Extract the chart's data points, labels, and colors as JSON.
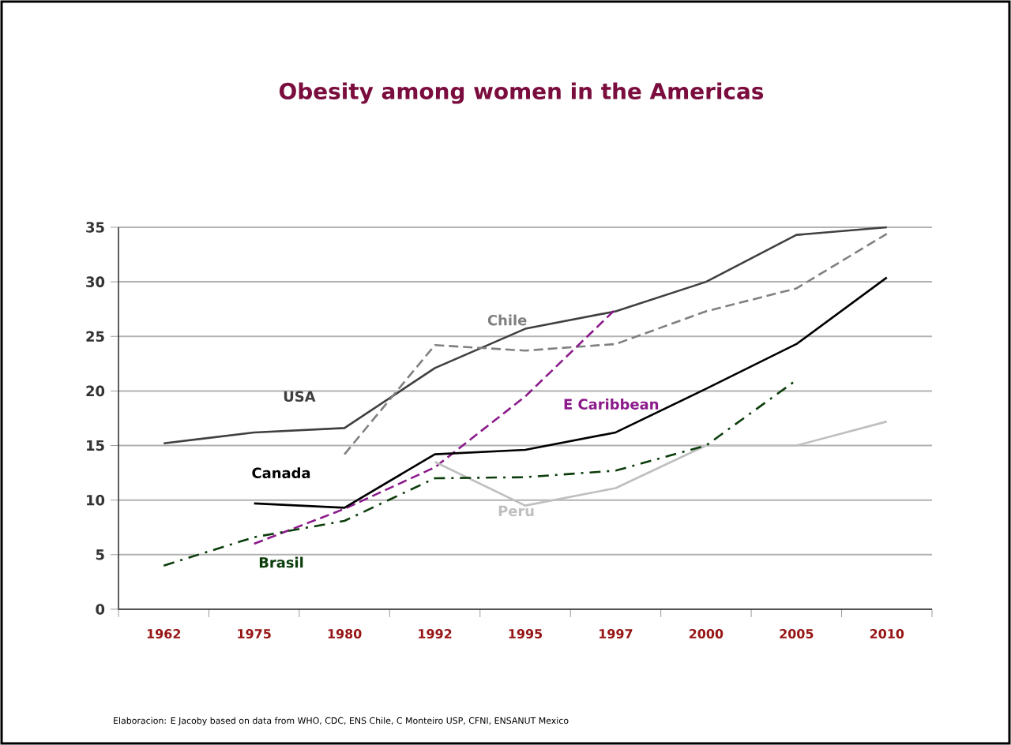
{
  "chart_data": {
    "type": "line",
    "title": "Obesity among women in the Americas",
    "categories": [
      "1962",
      "1975",
      "1980",
      "1992",
      "1995",
      "1997",
      "2000",
      "2005",
      "2010"
    ],
    "series": [
      {
        "name": "USA",
        "color": "#404040",
        "line_style": "solid",
        "values": [
          15.2,
          16.2,
          16.6,
          22.1,
          25.7,
          27.3,
          30,
          34.3,
          35
        ]
      },
      {
        "name": "Chile",
        "color": "#808080",
        "line_style": "dashed",
        "values": [
          null,
          null,
          14.2,
          24.2,
          23.7,
          24.3,
          27.3,
          29.4,
          34.4
        ]
      },
      {
        "name": "E Caribbean",
        "color": "#8b1a8b",
        "line_style": "dashed",
        "values": [
          null,
          6,
          9.2,
          13,
          19.5,
          27.5,
          null,
          null,
          null
        ]
      },
      {
        "name": "Canada",
        "color": "#000000",
        "line_style": "solid",
        "values": [
          null,
          9.7,
          9.3,
          14.2,
          14.6,
          16.2,
          20.2,
          24.3,
          30.4
        ]
      },
      {
        "name": "Peru",
        "color": "#bfbfbf",
        "line_style": "solid",
        "values": [
          null,
          null,
          null,
          13.5,
          9.5,
          11.1,
          15,
          15,
          17.2
        ]
      },
      {
        "name": "Brasil",
        "color": "#0b3d0b",
        "line_style": "dashdot",
        "values": [
          4,
          6.6,
          8.1,
          12,
          12.1,
          12.7,
          15,
          21,
          null
        ]
      }
    ],
    "ylim": [
      0,
      35
    ],
    "yticks": [
      0,
      5,
      10,
      15,
      20,
      25,
      30,
      35
    ],
    "grid": "y",
    "annotations": [
      "Elaboracion: E Jacoby based on data from WHO, CDC, ENS Chile, C Monteiro USP, CFNI, ENSANUT Mexico"
    ]
  }
}
